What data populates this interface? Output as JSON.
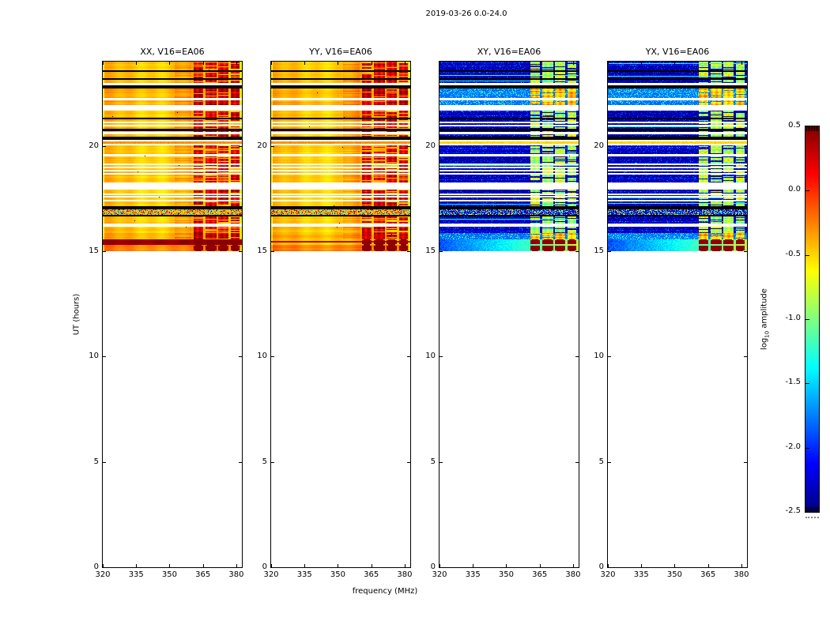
{
  "chart_data": {
    "type": "heatmap",
    "suptitle": "2019-03-26 0.0-24.0",
    "colormap": "jet",
    "clim": [
      -2.5,
      0.5
    ],
    "x_axis": {
      "label": "frequency (MHz)",
      "range": [
        320,
        382.5
      ],
      "ticks": [
        320,
        335,
        350,
        365,
        380
      ]
    },
    "y_axis": {
      "label": "UT (hours)",
      "range": [
        0,
        24
      ],
      "ticks": [
        0,
        5,
        10,
        15,
        20
      ]
    },
    "colorbar": {
      "label_prefix": "log",
      "label_sub": "10",
      "label_suffix": " amplitude",
      "ticks": [
        "0.5",
        "0.0",
        "-0.5",
        "-1.0",
        "-1.5",
        "-2.0",
        "-2.5"
      ]
    },
    "panels": [
      {
        "key": "xx",
        "title": "XX, V16=EA06",
        "kind": "auto"
      },
      {
        "key": "yy",
        "title": "YY, V16=EA06",
        "kind": "auto"
      },
      {
        "key": "xy",
        "title": "XY, V16=EA06",
        "kind": "cross"
      },
      {
        "key": "yx",
        "title": "YX, V16=EA06",
        "kind": "cross"
      }
    ],
    "data_extent_ut": [
      15.0,
      24.0
    ],
    "rfi_bands_mhz": [
      [
        360.5,
        365.0
      ],
      [
        366.0,
        371.0
      ],
      [
        371.8,
        376.3
      ],
      [
        377.2,
        381.3
      ]
    ],
    "weak_rfi_band_mhz": [
      352.0,
      359.5
    ],
    "levels": {
      "auto_background": -0.45,
      "cross_background": -2.35,
      "auto_rfi_medium": [
        -0.1,
        0.4
      ],
      "auto_rfi_strong": [
        0.1,
        0.5
      ],
      "cross_rfi_medium": [
        -1.3,
        -0.55
      ],
      "cross_rfi_strong": [
        -1.0,
        -0.4
      ],
      "burst_blob": 0.45,
      "xx_saturated_band": 0.43
    },
    "segments": [
      {
        "ut": [
          23.0,
          24.0
        ],
        "kind": "data",
        "rfi": "medium",
        "black_lines": [
          23.55,
          23.17
        ]
      },
      {
        "ut": [
          22.86,
          23.0
        ],
        "kind": "gap"
      },
      {
        "ut": [
          22.74,
          22.86
        ],
        "kind": "black"
      },
      {
        "ut": [
          22.26,
          22.74
        ],
        "kind": "data",
        "rfi": "strong"
      },
      {
        "ut": [
          22.18,
          22.26
        ],
        "kind": "gap"
      },
      {
        "ut": [
          21.92,
          22.18
        ],
        "kind": "data",
        "rfi": "strong"
      },
      {
        "ut": [
          21.66,
          21.92
        ],
        "kind": "gap"
      },
      {
        "ut": [
          20.42,
          21.66
        ],
        "kind": "data",
        "rfi": "medium",
        "black_lines": [
          21.3,
          20.75
        ],
        "white_lines": [
          21.12,
          20.96,
          20.6
        ]
      },
      {
        "ut": [
          20.28,
          20.42
        ],
        "kind": "black"
      },
      {
        "ut": [
          20.04,
          20.28
        ],
        "kind": "gap",
        "streak": 20.16
      },
      {
        "ut": [
          18.28,
          20.04
        ],
        "kind": "data",
        "rfi": "medium",
        "white_lines": [
          19.55,
          19.12,
          18.97,
          18.82,
          18.67
        ]
      },
      {
        "ut": [
          17.94,
          18.28
        ],
        "kind": "gap"
      },
      {
        "ut": [
          17.12,
          17.94
        ],
        "kind": "data",
        "rfi": "medium",
        "white_lines": [
          17.7,
          17.59,
          17.4
        ]
      },
      {
        "ut": [
          17.0,
          17.12
        ],
        "kind": "black"
      },
      {
        "ut": [
          16.74,
          17.0
        ],
        "kind": "speckle"
      },
      {
        "ut": [
          16.66,
          16.74
        ],
        "kind": "black"
      },
      {
        "ut": [
          16.3,
          16.66
        ],
        "kind": "data",
        "rfi": "medium"
      },
      {
        "ut": [
          16.16,
          16.3
        ],
        "kind": "gap"
      },
      {
        "ut": [
          15.86,
          16.16
        ],
        "kind": "data",
        "rfi": "medium"
      },
      {
        "ut": [
          15.58,
          15.86
        ],
        "kind": "data",
        "rfi": "strong"
      },
      {
        "ut": [
          15.3,
          15.58
        ],
        "kind": "redband"
      },
      {
        "ut": [
          15.0,
          15.3
        ],
        "kind": "burst"
      }
    ]
  }
}
